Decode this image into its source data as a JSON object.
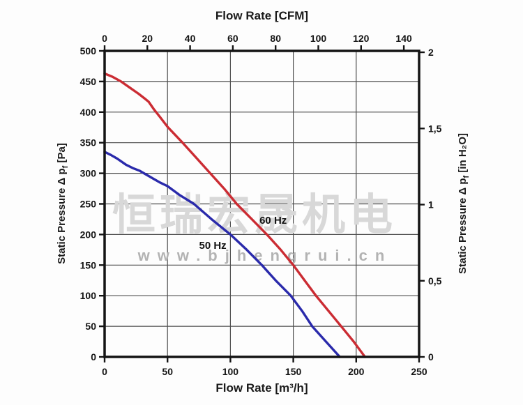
{
  "figure": {
    "top_axis": {
      "title": "Flow Rate [CFM]",
      "ticks": [
        "0",
        "20",
        "40",
        "60",
        "80",
        "100",
        "120",
        "140"
      ]
    },
    "bottom_axis": {
      "title": "Flow Rate [m³/h]",
      "ticks": [
        "0",
        "50",
        "100",
        "150",
        "200",
        "250"
      ]
    },
    "left_axis": {
      "label_pre": "Static Pressure Δ p",
      "label_sub": "f",
      "label_post": " [Pa]",
      "ticks": [
        "0",
        "50",
        "100",
        "150",
        "200",
        "250",
        "300",
        "350",
        "400",
        "450",
        "500"
      ]
    },
    "right_axis": {
      "label_pre": "Static Pressure Δ p",
      "label_sub": "f",
      "label_post": " [in H₂O]",
      "ticks": [
        "0",
        "0,5",
        "1",
        "1,5",
        "2"
      ]
    },
    "watermark": {
      "text_cn": "恒瑞宏晟机电",
      "text_url": "www.bjhengrui.cn"
    }
  },
  "chart_data": {
    "type": "line",
    "x_bottom": {
      "label": "Flow Rate [m³/h]",
      "min": 0,
      "max": 250,
      "tick_step": 50,
      "gridline_step": 50,
      "ticks": [
        0,
        50,
        100,
        150,
        200,
        250
      ]
    },
    "x_top": {
      "label": "Flow Rate [CFM]",
      "m3h_per_cfm": 1.699,
      "ticks": [
        0,
        20,
        40,
        60,
        80,
        100,
        120,
        140
      ]
    },
    "y_left": {
      "label": "Static Pressure Δ pf [Pa]",
      "min": 0,
      "max": 500,
      "tick_step": 50,
      "gridline_step": 50,
      "ticks": [
        0,
        50,
        100,
        150,
        200,
        250,
        300,
        350,
        400,
        450,
        500
      ]
    },
    "y_right": {
      "label": "Static Pressure Δ pf [in H₂O]",
      "pa_per_inh2o": 248.84,
      "ticks": [
        0,
        0.5,
        1,
        1.5,
        2
      ],
      "tick_labels": [
        "0",
        "0,5",
        "1",
        "1,5",
        "2"
      ]
    },
    "grid": true,
    "legend_position": "inline-curve-labels",
    "series": [
      {
        "name": "60 Hz",
        "color": "#cb2c33",
        "label_at_m3h_pa": [
          134,
          223
        ],
        "points_m3h_pa": [
          [
            0,
            463
          ],
          [
            6,
            458
          ],
          [
            13,
            450
          ],
          [
            20,
            440
          ],
          [
            27,
            430
          ],
          [
            32,
            422
          ],
          [
            35,
            417
          ],
          [
            39,
            405
          ],
          [
            44,
            392
          ],
          [
            50,
            376
          ],
          [
            56,
            363
          ],
          [
            62,
            350
          ],
          [
            73,
            325
          ],
          [
            84,
            300
          ],
          [
            95,
            275
          ],
          [
            105,
            250
          ],
          [
            117,
            225
          ],
          [
            129,
            200
          ],
          [
            140,
            175
          ],
          [
            150,
            150
          ],
          [
            159,
            125
          ],
          [
            168,
            100
          ],
          [
            178,
            75
          ],
          [
            188,
            50
          ],
          [
            198,
            25
          ],
          [
            207,
            0
          ]
        ]
      },
      {
        "name": "50 Hz",
        "color": "#2a2aab",
        "label_at_m3h_pa": [
          86,
          182
        ],
        "points_m3h_pa": [
          [
            0,
            335
          ],
          [
            5,
            330
          ],
          [
            10,
            324
          ],
          [
            17,
            314
          ],
          [
            23,
            308
          ],
          [
            28,
            304
          ],
          [
            33,
            298
          ],
          [
            38,
            292
          ],
          [
            44,
            285
          ],
          [
            50,
            279
          ],
          [
            60,
            264
          ],
          [
            71,
            250
          ],
          [
            85,
            225
          ],
          [
            100,
            200
          ],
          [
            113,
            175
          ],
          [
            125,
            150
          ],
          [
            136,
            125
          ],
          [
            148,
            100
          ],
          [
            157,
            75
          ],
          [
            165,
            50
          ],
          [
            176,
            25
          ],
          [
            187,
            0
          ]
        ]
      }
    ]
  }
}
